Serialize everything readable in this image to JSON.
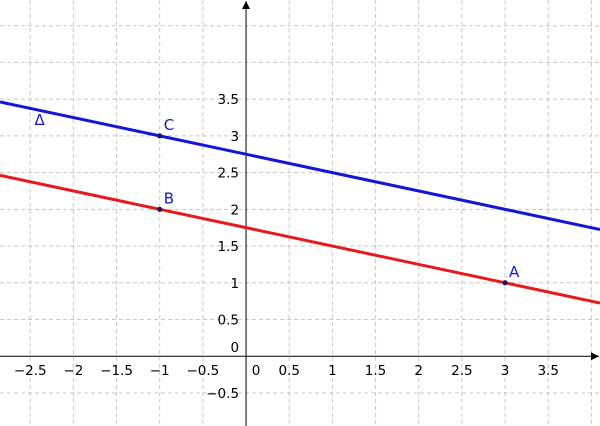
{
  "chart_data": {
    "type": "line",
    "title": "",
    "xlabel": "",
    "ylabel": "",
    "xlim": [
      -2.85,
      4.1
    ],
    "ylim": [
      -0.95,
      4.85
    ],
    "grid": true,
    "origin_label": "0",
    "x_ticks": [
      -2.5,
      -2,
      -1.5,
      -1,
      -0.5,
      0,
      0.5,
      1,
      1.5,
      2,
      2.5,
      3,
      3.5
    ],
    "x_tick_labels": [
      "−2.5",
      "−2",
      "−1.5",
      "−1",
      "−0.5",
      "0",
      "0.5",
      "1",
      "1.5",
      "2",
      "2.5",
      "3",
      "3.5"
    ],
    "y_ticks": [
      -0.5,
      0.5,
      1,
      1.5,
      2,
      2.5,
      3,
      3.5
    ],
    "y_tick_labels": [
      "−0.5",
      "0.5",
      "1",
      "1.5",
      "2",
      "2.5",
      "3",
      "3.5"
    ],
    "series": [
      {
        "name": "Δ",
        "color": "#1515d6",
        "slope": -0.25,
        "intercept": 2.75,
        "x": [
          -2.85,
          4.1
        ],
        "y": [
          3.4625,
          1.725
        ]
      },
      {
        "name": "",
        "color": "#e61a1a",
        "slope": -0.25,
        "intercept": 1.75,
        "x": [
          -2.85,
          4.1
        ],
        "y": [
          2.4625,
          0.725
        ]
      }
    ],
    "points": [
      {
        "label": "A",
        "x": 3,
        "y": 1,
        "label_color": "#1515d6"
      },
      {
        "label": "B",
        "x": -1,
        "y": 2,
        "label_color": "#1515d6"
      },
      {
        "label": "C",
        "x": -1,
        "y": 3,
        "label_color": "#1515d6"
      }
    ],
    "line_label": {
      "text": "Δ",
      "x": -2.45,
      "y": 3.15,
      "color": "#1515d6"
    }
  }
}
